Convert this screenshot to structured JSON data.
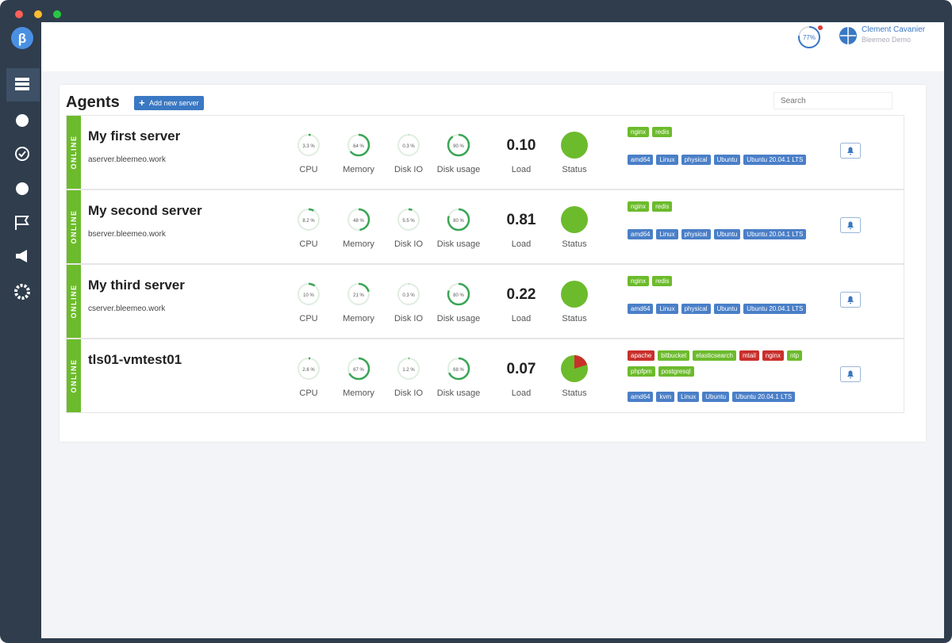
{
  "header": {
    "usage": {
      "value": 77,
      "label": "77%"
    },
    "user_name": "Clement Cavanier",
    "account": "Bleemeo Demo"
  },
  "agents": {
    "title": "Agents",
    "add_button": "Add new server",
    "search_placeholder": "Search",
    "metric_labels": [
      "CPU",
      "Memory",
      "Disk IO",
      "Disk usage"
    ],
    "load_label": "Load",
    "status_label": "Status",
    "rows": [
      {
        "state": "ONLINE",
        "name": "My first server",
        "host": "aserver.bleemeo.work",
        "gauges": [
          {
            "value": 3.3,
            "label": "3.3 %"
          },
          {
            "value": 64,
            "label": "64 %"
          },
          {
            "value": 0.3,
            "label": "0.3 %"
          },
          {
            "value": 90,
            "label": "90 %"
          }
        ],
        "load": "0.10",
        "service_tags": [
          {
            "text": "nginx",
            "color": "#6cbb2c"
          },
          {
            "text": "redis",
            "color": "#6cbb2c"
          }
        ],
        "system_tags": [
          {
            "text": "amd64",
            "color": "#4a7fc8"
          },
          {
            "text": "Linux",
            "color": "#4a7fc8"
          },
          {
            "text": "physical",
            "color": "#4a7fc8"
          },
          {
            "text": "Ubuntu",
            "color": "#4a7fc8"
          },
          {
            "text": "Ubuntu 20.04.1 LTS",
            "color": "#4a7fc8"
          }
        ]
      },
      {
        "state": "ONLINE",
        "name": "My second server",
        "host": "bserver.bleemeo.work",
        "gauges": [
          {
            "value": 8.2,
            "label": "8.2 %"
          },
          {
            "value": 48,
            "label": "48 %"
          },
          {
            "value": 5.5,
            "label": "5.5 %"
          },
          {
            "value": 80,
            "label": "80 %"
          }
        ],
        "load": "0.81",
        "service_tags": [
          {
            "text": "nginx",
            "color": "#6cbb2c"
          },
          {
            "text": "redis",
            "color": "#6cbb2c"
          }
        ],
        "system_tags": [
          {
            "text": "amd64",
            "color": "#4a7fc8"
          },
          {
            "text": "Linux",
            "color": "#4a7fc8"
          },
          {
            "text": "physical",
            "color": "#4a7fc8"
          },
          {
            "text": "Ubuntu",
            "color": "#4a7fc8"
          },
          {
            "text": "Ubuntu 20.04.1 LTS",
            "color": "#4a7fc8"
          }
        ]
      },
      {
        "state": "ONLINE",
        "name": "My third server",
        "host": "cserver.bleemeo.work",
        "gauges": [
          {
            "value": 10,
            "label": "10 %"
          },
          {
            "value": 21,
            "label": "21 %"
          },
          {
            "value": 0.3,
            "label": "0.3 %"
          },
          {
            "value": 80,
            "label": "80 %"
          }
        ],
        "load": "0.22",
        "service_tags": [
          {
            "text": "nginx",
            "color": "#6cbb2c"
          },
          {
            "text": "redis",
            "color": "#6cbb2c"
          }
        ],
        "system_tags": [
          {
            "text": "amd64",
            "color": "#4a7fc8"
          },
          {
            "text": "Linux",
            "color": "#4a7fc8"
          },
          {
            "text": "physical",
            "color": "#4a7fc8"
          },
          {
            "text": "Ubuntu",
            "color": "#4a7fc8"
          },
          {
            "text": "Ubuntu 20.04.1 LTS",
            "color": "#4a7fc8"
          }
        ]
      },
      {
        "state": "ONLINE",
        "name": "tls01-vmtest01",
        "gauges": [
          {
            "value": 2.6,
            "label": "2.6 %"
          },
          {
            "value": 67,
            "label": "67 %"
          },
          {
            "value": 1.2,
            "label": "1.2 %"
          },
          {
            "value": 68,
            "label": "68 %"
          }
        ],
        "load": "0.07",
        "service_tags": [
          {
            "text": "apache",
            "color": "#c9302c"
          },
          {
            "text": "bitbucket",
            "color": "#6cbb2c"
          },
          {
            "text": "elasticsearch",
            "color": "#6cbb2c"
          },
          {
            "text": "mtail",
            "color": "#c9302c"
          },
          {
            "text": "nginx",
            "color": "#c9302c"
          },
          {
            "text": "ntp",
            "color": "#6cbb2c"
          },
          {
            "text": "phpfpm",
            "color": "#6cbb2c"
          },
          {
            "text": "postgresql",
            "color": "#6cbb2c"
          }
        ],
        "system_tags": [
          {
            "text": "amd64",
            "color": "#4a7fc8"
          },
          {
            "text": "kvm",
            "color": "#4a7fc8"
          },
          {
            "text": "Linux",
            "color": "#4a7fc8"
          },
          {
            "text": "Ubuntu",
            "color": "#4a7fc8"
          },
          {
            "text": "Ubuntu 20.04.1 LTS",
            "color": "#4a7fc8"
          }
        ]
      }
    ]
  }
}
